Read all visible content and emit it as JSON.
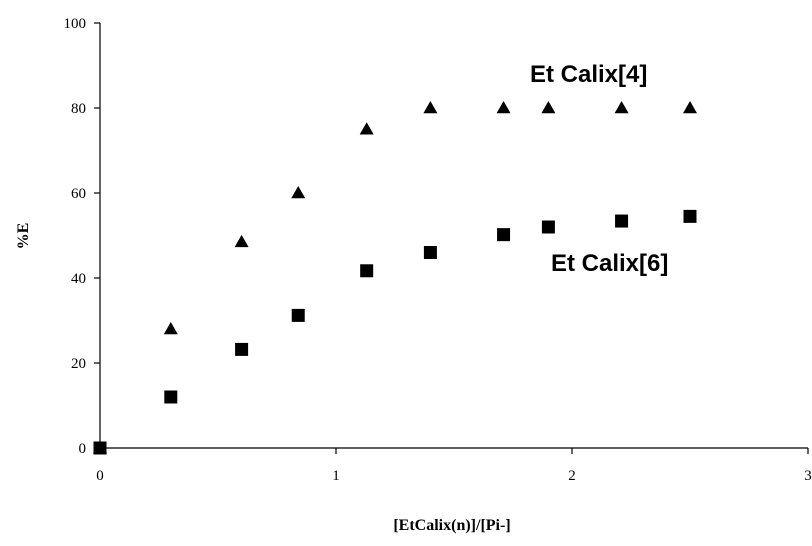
{
  "chart_data": {
    "type": "scatter",
    "title": "",
    "xlabel": "[EtCalix(n)]/[Pi-]",
    "ylabel": "%E",
    "xlim": [
      0,
      3
    ],
    "ylim": [
      0,
      100
    ],
    "x_ticks": [
      "0",
      "1",
      "2",
      "3"
    ],
    "y_ticks": [
      "0",
      "20",
      "40",
      "60",
      "80",
      "100"
    ],
    "grid": false,
    "series": [
      {
        "name": "Et Calix[4]",
        "marker": "triangle",
        "color": "#000000",
        "points": [
          {
            "x": 0,
            "y": 0
          },
          {
            "x": 0.3,
            "y": 28
          },
          {
            "x": 0.6,
            "y": 48.5
          },
          {
            "x": 0.84,
            "y": 60
          },
          {
            "x": 1.13,
            "y": 75
          },
          {
            "x": 1.4,
            "y": 80
          },
          {
            "x": 1.71,
            "y": 80
          },
          {
            "x": 1.9,
            "y": 80
          },
          {
            "x": 2.21,
            "y": 80
          },
          {
            "x": 2.5,
            "y": 80
          }
        ]
      },
      {
        "name": "Et Calix[6]",
        "marker": "square",
        "color": "#000000",
        "points": [
          {
            "x": 0,
            "y": 0
          },
          {
            "x": 0.3,
            "y": 12
          },
          {
            "x": 0.6,
            "y": 23.2
          },
          {
            "x": 0.84,
            "y": 31.2
          },
          {
            "x": 1.13,
            "y": 41.7
          },
          {
            "x": 1.4,
            "y": 46
          },
          {
            "x": 1.71,
            "y": 50.2
          },
          {
            "x": 1.9,
            "y": 52
          },
          {
            "x": 2.21,
            "y": 53.4
          },
          {
            "x": 2.5,
            "y": 54.5
          }
        ]
      }
    ]
  }
}
